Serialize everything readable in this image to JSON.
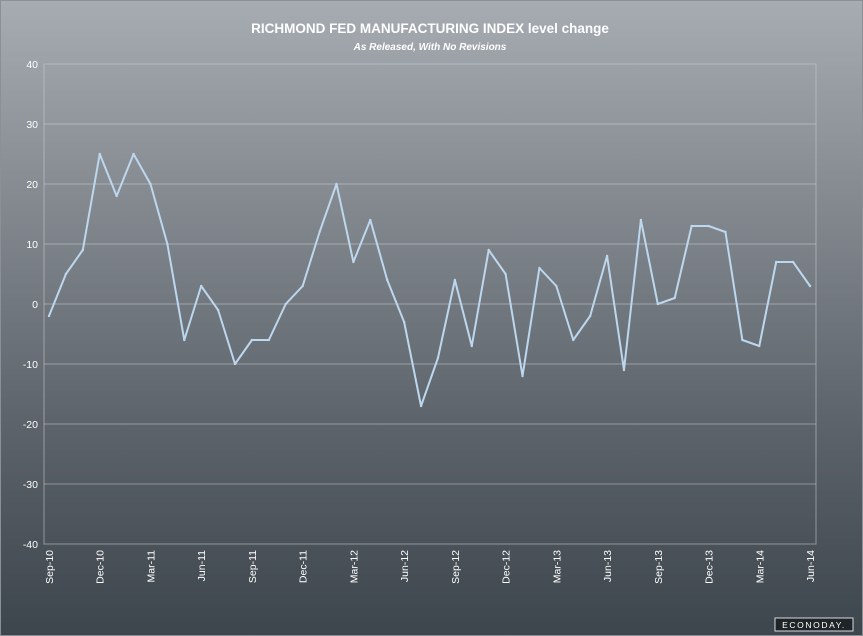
{
  "chart_data": {
    "type": "line",
    "title": "RICHMOND FED MANUFACTURING INDEX level change",
    "subtitle": "As Released, With No Revisions",
    "xlabel": "",
    "ylabel": "",
    "ylim": [
      -40,
      40
    ],
    "yticks": [
      40,
      30,
      20,
      10,
      0,
      -10,
      -20,
      -30,
      -40
    ],
    "grid": true,
    "x": [
      "Sep-10",
      "Oct-10",
      "Nov-10",
      "Dec-10",
      "Jan-11",
      "Feb-11",
      "Mar-11",
      "Apr-11",
      "May-11",
      "Jun-11",
      "Jul-11",
      "Aug-11",
      "Sep-11",
      "Oct-11",
      "Nov-11",
      "Dec-11",
      "Jan-12",
      "Feb-12",
      "Mar-12",
      "Apr-12",
      "May-12",
      "Jun-12",
      "Jul-12",
      "Aug-12",
      "Sep-12",
      "Oct-12",
      "Nov-12",
      "Dec-12",
      "Jan-13",
      "Feb-13",
      "Mar-13",
      "Apr-13",
      "May-13",
      "Jun-13",
      "Jul-13",
      "Aug-13",
      "Sep-13",
      "Oct-13",
      "Nov-13",
      "Dec-13",
      "Jan-14",
      "Feb-14",
      "Mar-14",
      "Apr-14",
      "May-14",
      "Jun-14"
    ],
    "xtick_labels": [
      "Sep-10",
      "Dec-10",
      "Mar-11",
      "Jun-11",
      "Sep-11",
      "Dec-11",
      "Mar-12",
      "Jun-12",
      "Sep-12",
      "Dec-12",
      "Mar-13",
      "Jun-13",
      "Sep-13",
      "Dec-13",
      "Mar-14",
      "Jun-14"
    ],
    "series": [
      {
        "values": [
          -2,
          5,
          9,
          25,
          18,
          25,
          20,
          10,
          -6,
          3,
          -1,
          -10,
          -6,
          -6,
          0,
          3,
          12,
          20,
          7,
          14,
          4,
          -3,
          -17,
          -9,
          4,
          -7,
          9,
          5,
          -12,
          6,
          3,
          -6,
          -2,
          8,
          -11,
          14,
          0,
          1,
          13,
          13,
          12,
          -6,
          -7,
          7,
          7,
          3
        ],
        "color": "#bdd7ee"
      }
    ]
  },
  "logo": {
    "text": "ECONODAY."
  }
}
